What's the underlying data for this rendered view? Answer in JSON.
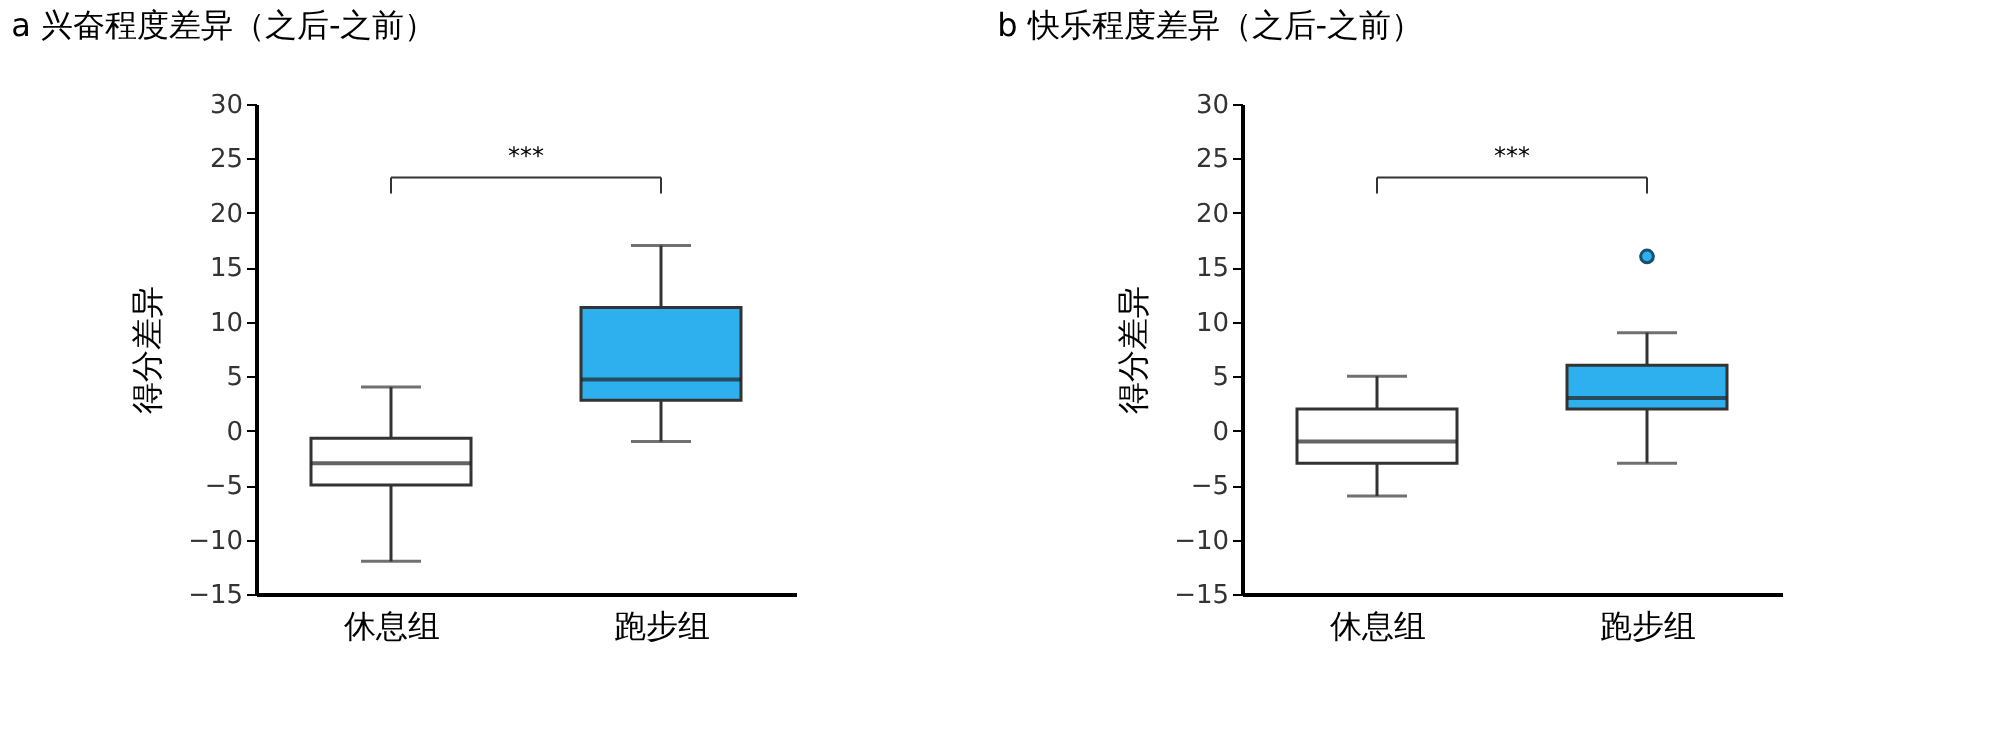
{
  "chart_data": [
    {
      "type": "box",
      "title": "a 兴奋程度差异（之后-之前）",
      "ylabel": "得分差异",
      "categories": [
        "休息组",
        "跑步组"
      ],
      "boxes": [
        {
          "low": -12,
          "q1": -5,
          "median": -3,
          "q3": -0.7,
          "high": 4
        },
        {
          "low": -1,
          "q1": 2.8,
          "median": 4.7,
          "q3": 11.3,
          "high": 17
        }
      ],
      "colors": [
        "#ffffff",
        "#2db0ed"
      ],
      "ylim": [
        -15,
        30
      ],
      "yticks": [
        -15,
        -10,
        -5,
        0,
        5,
        10,
        15,
        20,
        25,
        30
      ],
      "annotations": [
        "***"
      ]
    },
    {
      "type": "box",
      "title": "b 快乐程度差异（之后-之前）",
      "ylabel": "得分差异",
      "categories": [
        "休息组",
        "跑步组"
      ],
      "boxes": [
        {
          "low": -6,
          "q1": -3,
          "median": -1,
          "q3": 2,
          "high": 5
        },
        {
          "low": -3,
          "q1": 2,
          "median": 3,
          "q3": 6,
          "high": 9,
          "outliers": [
            16
          ]
        }
      ],
      "colors": [
        "#ffffff",
        "#2db0ed"
      ],
      "ylim": [
        -15,
        30
      ],
      "yticks": [
        -15,
        -10,
        -5,
        0,
        5,
        10,
        15,
        20,
        25,
        30
      ],
      "annotations": [
        "***"
      ]
    }
  ]
}
